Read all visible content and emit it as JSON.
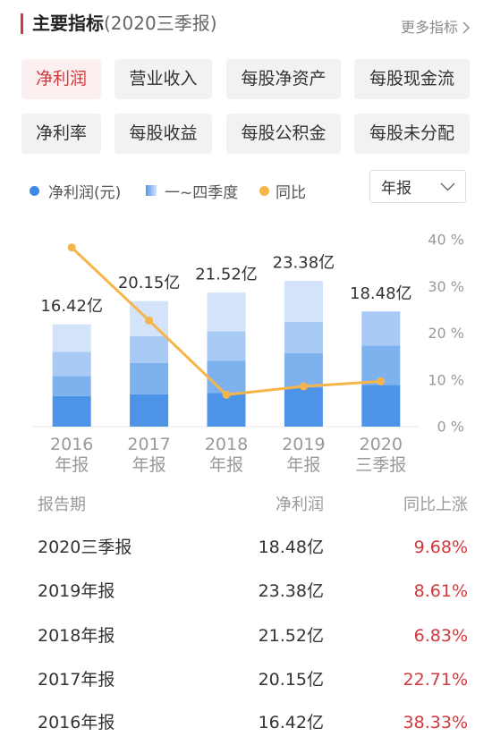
{
  "theme": {
    "accent": "#d2393c",
    "selected_tab_bg": "#fcefef",
    "tab_bg": "#f2f2f2"
  },
  "header": {
    "title": "主要指标",
    "subtitle": "(2020三季报)",
    "more_label": "更多指标",
    "more_icon": "chevron-right-icon"
  },
  "metric_tabs": [
    {
      "label": "净利润",
      "selected": true
    },
    {
      "label": "营业收入",
      "selected": false
    },
    {
      "label": "每股净资产",
      "selected": false
    },
    {
      "label": "每股现金流",
      "selected": false
    },
    {
      "label": "净利率",
      "selected": false
    },
    {
      "label": "每股收益",
      "selected": false
    },
    {
      "label": "每股公积金",
      "selected": false
    },
    {
      "label": "每股未分配",
      "selected": false
    }
  ],
  "period_select": {
    "value": "年报",
    "icon": "chevron-down-icon"
  },
  "chart_data": {
    "type": "bar",
    "stacked": true,
    "categories": [
      {
        "year": "2016",
        "period": "年报"
      },
      {
        "year": "2017",
        "period": "年报"
      },
      {
        "year": "2018",
        "period": "年报"
      },
      {
        "year": "2019",
        "period": "年报"
      },
      {
        "year": "2020",
        "period": "三季报"
      }
    ],
    "series": [
      {
        "name": "净利润(元)",
        "type": "bar",
        "values": [
          16.42,
          20.15,
          21.52,
          23.38,
          18.48
        ],
        "labels": [
          "16.42亿",
          "20.15亿",
          "21.52亿",
          "23.38亿",
          "18.48亿"
        ],
        "color": "#3d8be6",
        "marker": "dot"
      },
      {
        "name": "同比",
        "type": "line",
        "axis": "right",
        "values": [
          38.33,
          22.71,
          6.83,
          8.61,
          9.68
        ],
        "color": "#f6b54a",
        "marker": "dot"
      }
    ],
    "stack_segments": {
      "name": "一~四季度",
      "marker": "gradient",
      "values": [
        [
          4.9,
          3.2,
          3.9,
          4.4
        ],
        [
          5.2,
          5.0,
          4.3,
          5.6
        ],
        [
          5.4,
          5.2,
          4.7,
          6.2
        ],
        [
          6.3,
          5.5,
          5.0,
          6.6
        ],
        [
          6.7,
          6.3,
          5.5
        ]
      ],
      "colors": [
        "#4d94e8",
        "#7db2ef",
        "#a8caf4",
        "#d2e3fa"
      ]
    },
    "bar_ylim": [
      0,
      30
    ],
    "y2lim": [
      0,
      40
    ],
    "y2_ticks": [
      "40 %",
      "30 %",
      "20 %",
      "10 %",
      "0 %"
    ],
    "grid": false,
    "legend": "top-left"
  },
  "table": {
    "headers": [
      "报告期",
      "净利润",
      "同比上涨"
    ],
    "rows": [
      [
        "2020三季报",
        "18.48亿",
        "9.68%"
      ],
      [
        "2019年报",
        "23.38亿",
        "8.61%"
      ],
      [
        "2018年报",
        "21.52亿",
        "6.83%"
      ],
      [
        "2017年报",
        "20.15亿",
        "22.71%"
      ],
      [
        "2016年报",
        "16.42亿",
        "38.33%"
      ]
    ]
  }
}
